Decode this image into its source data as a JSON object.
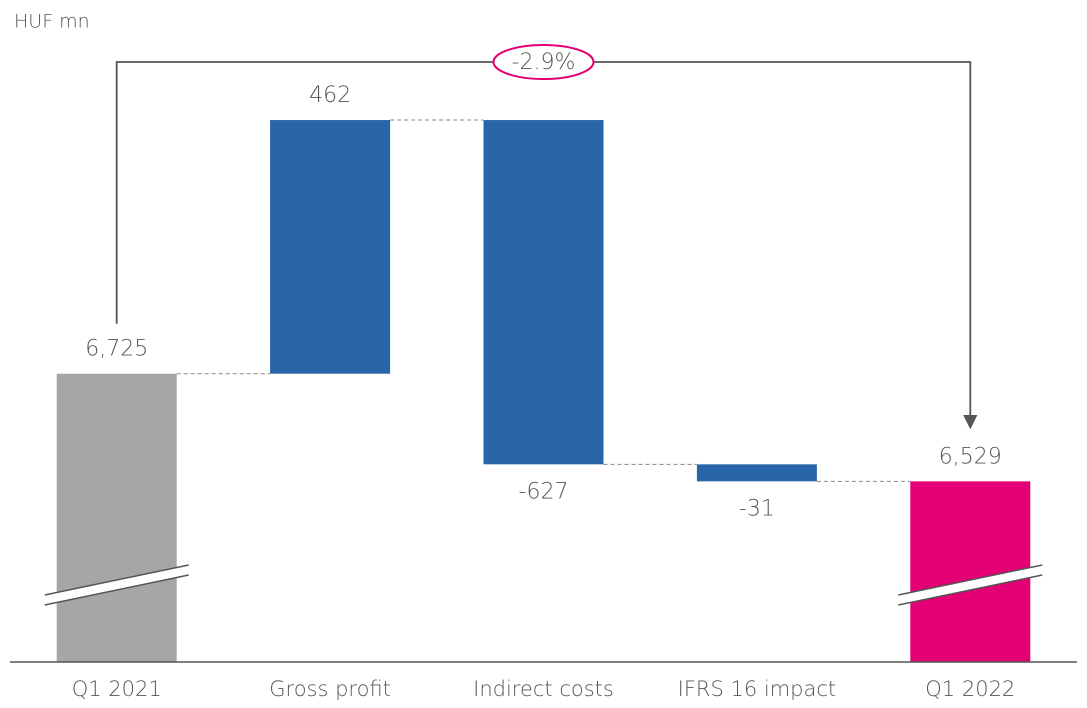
{
  "chart_data": {
    "type": "waterfall",
    "unit_label": "HUF mn",
    "categories": [
      "Q1 2021",
      "Gross profit",
      "Indirect costs",
      "IFRS 16 impact",
      "Q1 2022"
    ],
    "values": [
      6725,
      462,
      -627,
      -31,
      6529
    ],
    "value_labels": [
      "6,725",
      "462",
      "-627",
      "-31",
      "6,529"
    ],
    "measures": [
      "total",
      "relative",
      "relative",
      "relative",
      "total"
    ],
    "colors": [
      "#a6a6a6",
      "#2866a8",
      "#2866a8",
      "#2866a8",
      "#e20074"
    ],
    "ylim": [
      6200,
      7300
    ],
    "axis_break": true,
    "annotation": {
      "text": "-2.9%",
      "from": 0,
      "to": 4,
      "color": "#e20074"
    }
  }
}
